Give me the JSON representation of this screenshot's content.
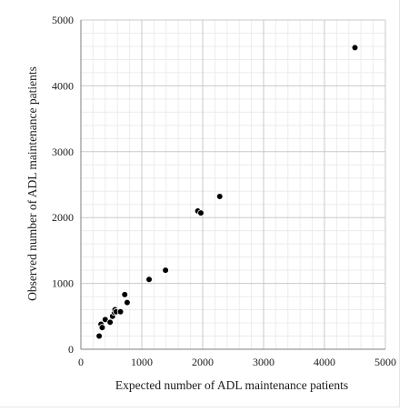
{
  "chart_data": {
    "type": "scatter",
    "title": "",
    "xlabel": "Expected number of ADL maintenance patients",
    "ylabel": "Observed number of ADL maintenance patients",
    "xlim": [
      0,
      5000
    ],
    "ylim": [
      0,
      5000
    ],
    "x_ticks": [
      "0",
      "1000",
      "2000",
      "3000",
      "4000",
      "5000"
    ],
    "y_ticks": [
      "0",
      "1000",
      "2000",
      "3000",
      "4000",
      "5000"
    ],
    "grid": true,
    "minor_grid": true,
    "marker_color": "#000000",
    "points": [
      {
        "x": 300,
        "y": 200
      },
      {
        "x": 330,
        "y": 380
      },
      {
        "x": 350,
        "y": 330
      },
      {
        "x": 400,
        "y": 450
      },
      {
        "x": 480,
        "y": 410
      },
      {
        "x": 520,
        "y": 500
      },
      {
        "x": 550,
        "y": 560
      },
      {
        "x": 560,
        "y": 600
      },
      {
        "x": 580,
        "y": 570
      },
      {
        "x": 650,
        "y": 570
      },
      {
        "x": 720,
        "y": 830
      },
      {
        "x": 760,
        "y": 710
      },
      {
        "x": 1120,
        "y": 1060
      },
      {
        "x": 1390,
        "y": 1200
      },
      {
        "x": 1920,
        "y": 2100
      },
      {
        "x": 1970,
        "y": 2070
      },
      {
        "x": 2280,
        "y": 2320
      },
      {
        "x": 4500,
        "y": 4580
      }
    ]
  }
}
